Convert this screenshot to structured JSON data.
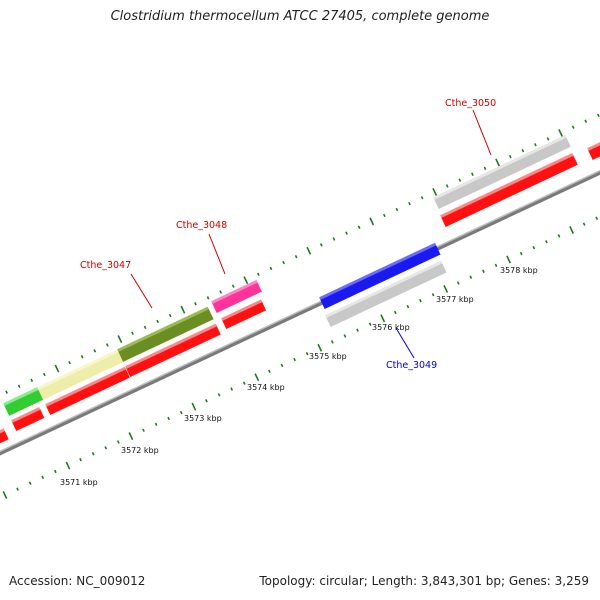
{
  "title": "Clostridium thermocellum ATCC 27405, complete genome",
  "footer": {
    "accession": "Accession: NC_009012",
    "summary": "Topology: circular; Length: 3,843,301 bp; Genes: 3,259"
  },
  "colors": {
    "backbone": "#8c8c8c",
    "ticks": "#1f7a1f",
    "forward_label": "#cc0000",
    "reverse_label": "#0000cc"
  },
  "scale_labels": [
    "3571 kbp",
    "3572 kbp",
    "3573 kbp",
    "3574 kbp",
    "3575 kbp",
    "3576 kbp",
    "3577 kbp",
    "3578 kbp"
  ],
  "gene_labels": [
    {
      "text": "Cthe_3047",
      "color": "#cc0000"
    },
    {
      "text": "Cthe_3048",
      "color": "#cc0000"
    },
    {
      "text": "Cthe_3049",
      "color": "#0000cc"
    },
    {
      "text": "Cthe_3050",
      "color": "#cc0000"
    }
  ],
  "features": [
    {
      "name": "feature-green",
      "color": "#33cc33"
    },
    {
      "name": "feature-pale-yellow",
      "color": "#eeeeaa"
    },
    {
      "name": "feature-olive",
      "color": "#6b8e23"
    },
    {
      "name": "feature-magenta",
      "color": "#ff3399"
    },
    {
      "name": "feature-blue",
      "color": "#1a1aee"
    },
    {
      "name": "feature-gray-reverse",
      "color": "#c8c8c8"
    },
    {
      "name": "feature-gray-forward",
      "color": "#c8c8c8"
    },
    {
      "name": "cds-forward",
      "color": "#ff1111"
    }
  ]
}
